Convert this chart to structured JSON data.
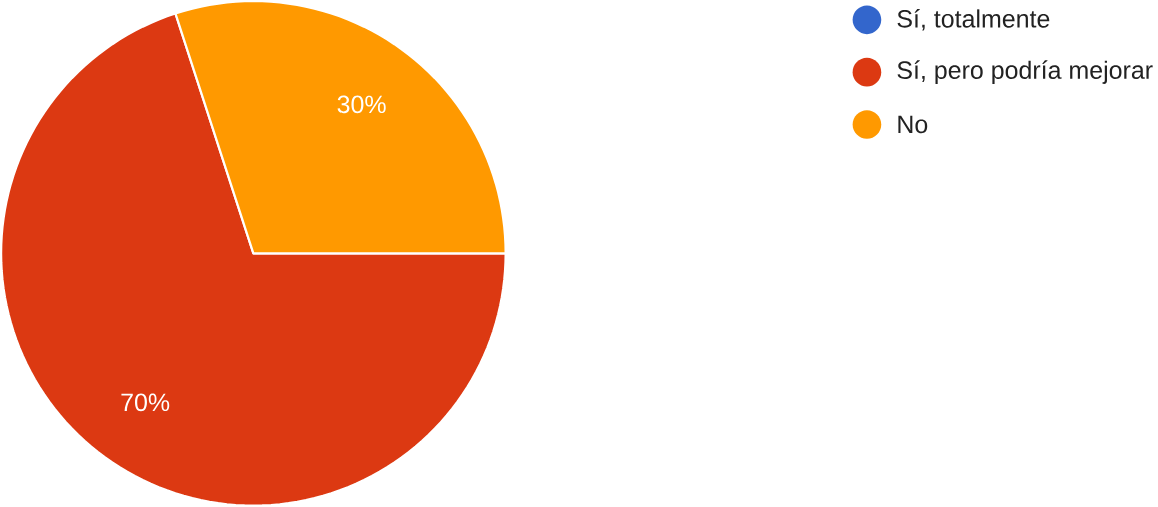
{
  "chart_data": {
    "type": "pie",
    "categories": [
      "Sí, totalmente",
      "Sí, pero podría mejorar",
      "No"
    ],
    "values": [
      0,
      70,
      30
    ],
    "colors": [
      "#3366cc",
      "#dc3912",
      "#ff9900"
    ],
    "value_labels": [
      null,
      "70%",
      "30%"
    ],
    "legend": "right"
  }
}
